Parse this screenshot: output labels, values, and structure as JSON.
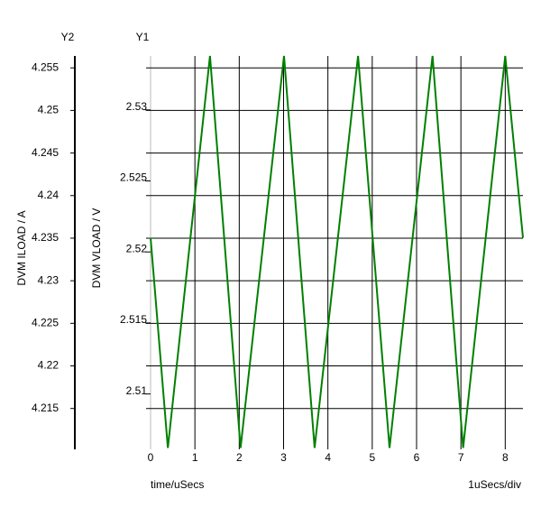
{
  "chart_data": {
    "type": "line",
    "x_label": "time/uSecs",
    "y_label": "DVM VLOAD / V",
    "y2_label": "DVM ILOAD / A",
    "annotations": [
      "Y2",
      "Y1",
      "1uSecs/div"
    ],
    "x": [
      0,
      0.39,
      1.34,
      2.03,
      3.01,
      3.7,
      4.68,
      5.39,
      6.36,
      7.05,
      8.0,
      8.4
    ],
    "values": [
      2.521,
      2.5062,
      2.5338,
      2.5062,
      2.5338,
      2.5062,
      2.5338,
      2.5062,
      2.5338,
      2.5062,
      2.5338,
      2.521
    ],
    "color": "#008000",
    "xlim": [
      0,
      8.4
    ],
    "xticks": [
      0,
      1,
      2,
      3,
      4,
      5,
      6,
      7,
      8
    ],
    "ylim": [
      2.5061,
      2.5338
    ],
    "yticks": [
      2.51,
      2.515,
      2.52,
      2.525,
      2.53
    ],
    "y2lim": [
      4.2102,
      4.2564
    ],
    "y2ticks": [
      4.215,
      4.22,
      4.225,
      4.23,
      4.235,
      4.24,
      4.245,
      4.25,
      4.255
    ],
    "grid": true
  }
}
